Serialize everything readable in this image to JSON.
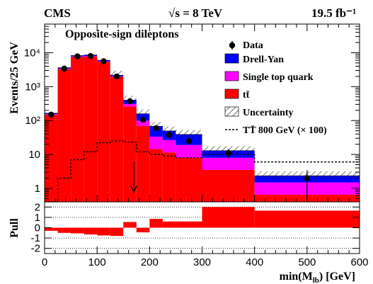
{
  "chart_data": {
    "type": "bar",
    "experiment": "CMS",
    "energy": "√s = 8 TeV",
    "luminosity": "19.5 fb⁻¹",
    "annotation": "Opposite-sign dileptons",
    "ylabel": "Events/25 GeV",
    "xlabel": "min(M_lb) [GeV]",
    "xlim": [
      0,
      600
    ],
    "ylim": [
      0.4,
      70000
    ],
    "y_scale": "log",
    "y_tick_labels": [
      "1",
      "10",
      "10²",
      "10³",
      "10⁴"
    ],
    "x_tick_labels": [
      "0",
      "100",
      "200",
      "300",
      "400",
      "500",
      "600"
    ],
    "legend": {
      "position": "top-right",
      "entries": [
        {
          "label": "Data",
          "style": "marker"
        },
        {
          "label": "Drell-Yan",
          "color": "#0000ff"
        },
        {
          "label": "Single top quark",
          "color": "#ff00ff"
        },
        {
          "label": "tt̄",
          "color": "#ff0000"
        },
        {
          "label": "Uncertainty",
          "style": "hatched"
        },
        {
          "label": "TT̄ 800 GeV (× 100)",
          "style": "dashed"
        }
      ]
    },
    "colors": {
      "ttbar": "#ff0000",
      "single_top": "#ff00ff",
      "drell_yan": "#0000ff"
    },
    "bin_edges": [
      0,
      25,
      50,
      75,
      100,
      125,
      150,
      175,
      200,
      225,
      250,
      300,
      400,
      600
    ],
    "stack": {
      "ttbar": [
        150,
        3300,
        7500,
        7800,
        5400,
        1950,
        260,
        70,
        14.5,
        11.5,
        8,
        3.5,
        0.65
      ],
      "single_top": [
        5,
        120,
        280,
        280,
        200,
        80,
        50,
        30,
        19,
        15,
        11,
        4.5,
        0.85
      ],
      "drell_yan": [
        10,
        200,
        500,
        520,
        400,
        150,
        90,
        58,
        34,
        23,
        20,
        5,
        0.85
      ]
    },
    "uncertainty": {
      "band": "hatched",
      "bins_from_x": 125
    },
    "data_points": {
      "x": [
        12.5,
        37.5,
        62.5,
        87.5,
        112.5,
        137.5,
        162.5,
        187.5,
        212.5,
        237.5,
        275,
        350,
        500
      ],
      "y": [
        150,
        3400,
        7800,
        8000,
        5600,
        2000,
        370,
        105,
        60,
        38,
        25,
        11,
        2
      ]
    },
    "signal": {
      "name": "TT̄ 800 GeV (× 100)",
      "values": [
        0.35,
        2,
        7,
        12,
        22,
        25,
        23,
        12,
        10,
        9,
        8,
        10,
        6
      ]
    },
    "arrow": {
      "x": 170,
      "y_from": 6,
      "y_to": 0.8
    },
    "pull": {
      "ylabel": "Pull",
      "ylim": [
        -2.5,
        2.5
      ],
      "y_tick_labels": [
        "-2",
        "-1",
        "0",
        "1",
        "2"
      ],
      "gridlines": [
        -2,
        -1,
        1,
        2
      ],
      "values": [
        -0.3,
        -0.5,
        -0.55,
        -0.65,
        -0.75,
        -0.8,
        0.55,
        -0.45,
        0.85,
        0.6,
        0.6,
        2.0,
        1.65
      ]
    }
  }
}
